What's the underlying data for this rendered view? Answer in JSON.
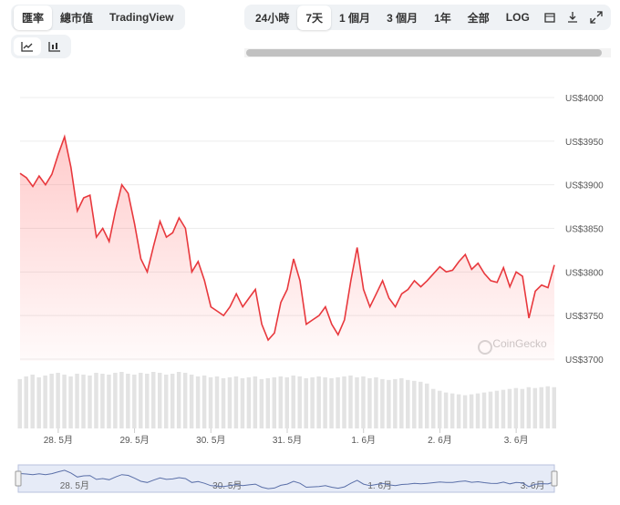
{
  "tabs": {
    "left": [
      "匯率",
      "總市值",
      "TradingView"
    ],
    "right": [
      "24小時",
      "7天",
      "1 個月",
      "3 個月",
      "1年",
      "全部",
      "LOG"
    ]
  },
  "watermark": "CoinGecko",
  "chart_data": {
    "type": "line",
    "categories": [
      null,
      null,
      null,
      null,
      null,
      null,
      "28. 5月",
      null,
      null,
      null,
      null,
      null,
      null,
      null,
      null,
      null,
      null,
      null,
      "29. 5月",
      null,
      null,
      null,
      null,
      null,
      null,
      null,
      null,
      null,
      null,
      null,
      "30. 5月",
      null,
      null,
      null,
      null,
      null,
      null,
      null,
      null,
      null,
      null,
      null,
      "31. 5月",
      null,
      null,
      null,
      null,
      null,
      null,
      null,
      null,
      null,
      null,
      null,
      "1. 6月",
      null,
      null,
      null,
      null,
      null,
      null,
      null,
      null,
      null,
      null,
      null,
      "2. 6月",
      null,
      null,
      null,
      null,
      null,
      null,
      null,
      null,
      null,
      null,
      null,
      "3. 6月",
      null,
      null,
      null,
      null,
      null,
      null
    ],
    "series": [
      {
        "color": "#e8383d",
        "values": [
          3913,
          3908,
          3898,
          3910,
          3900,
          3912,
          3935,
          3955,
          3920,
          3870,
          3885,
          3888,
          3840,
          3850,
          3835,
          3870,
          3900,
          3890,
          3855,
          3815,
          3800,
          3830,
          3858,
          3840,
          3845,
          3862,
          3850,
          3800,
          3812,
          3790,
          3760,
          3755,
          3750,
          3760,
          3775,
          3760,
          3770,
          3780,
          3740,
          3722,
          3730,
          3765,
          3780,
          3815,
          3790,
          3740,
          3745,
          3750,
          3760,
          3740,
          3728,
          3745,
          3790,
          3828,
          3780,
          3760,
          3775,
          3790,
          3770,
          3760,
          3775,
          3780,
          3790,
          3783,
          3790,
          3798,
          3806,
          3800,
          3802,
          3812,
          3820,
          3803,
          3810,
          3798,
          3790,
          3788,
          3805,
          3783,
          3800,
          3795,
          3747,
          3778,
          3785,
          3782,
          3808
        ]
      }
    ],
    "volume": [
      55,
      58,
      60,
      57,
      59,
      61,
      62,
      60,
      58,
      61,
      60,
      59,
      62,
      61,
      60,
      62,
      63,
      61,
      60,
      62,
      61,
      63,
      62,
      60,
      61,
      63,
      62,
      60,
      58,
      59,
      57,
      58,
      56,
      57,
      58,
      56,
      57,
      58,
      55,
      56,
      57,
      58,
      57,
      59,
      58,
      56,
      57,
      58,
      57,
      56,
      57,
      58,
      59,
      57,
      58,
      56,
      57,
      55,
      54,
      55,
      56,
      54,
      53,
      52,
      50,
      44,
      42,
      40,
      39,
      38,
      37,
      38,
      39,
      40,
      41,
      42,
      43,
      44,
      45,
      44,
      46,
      45,
      46,
      47,
      46
    ],
    "ylim": [
      3700,
      4000
    ],
    "yticks": [
      {
        "value": 3700,
        "label": "US$3700"
      },
      {
        "value": 3750,
        "label": "US$3750"
      },
      {
        "value": 3800,
        "label": "US$3800"
      },
      {
        "value": 3850,
        "label": "US$3850"
      },
      {
        "value": 3900,
        "label": "US$3900"
      },
      {
        "value": 3950,
        "label": "US$3950"
      },
      {
        "value": 4000,
        "label": "US$4000"
      }
    ],
    "grid": true
  }
}
